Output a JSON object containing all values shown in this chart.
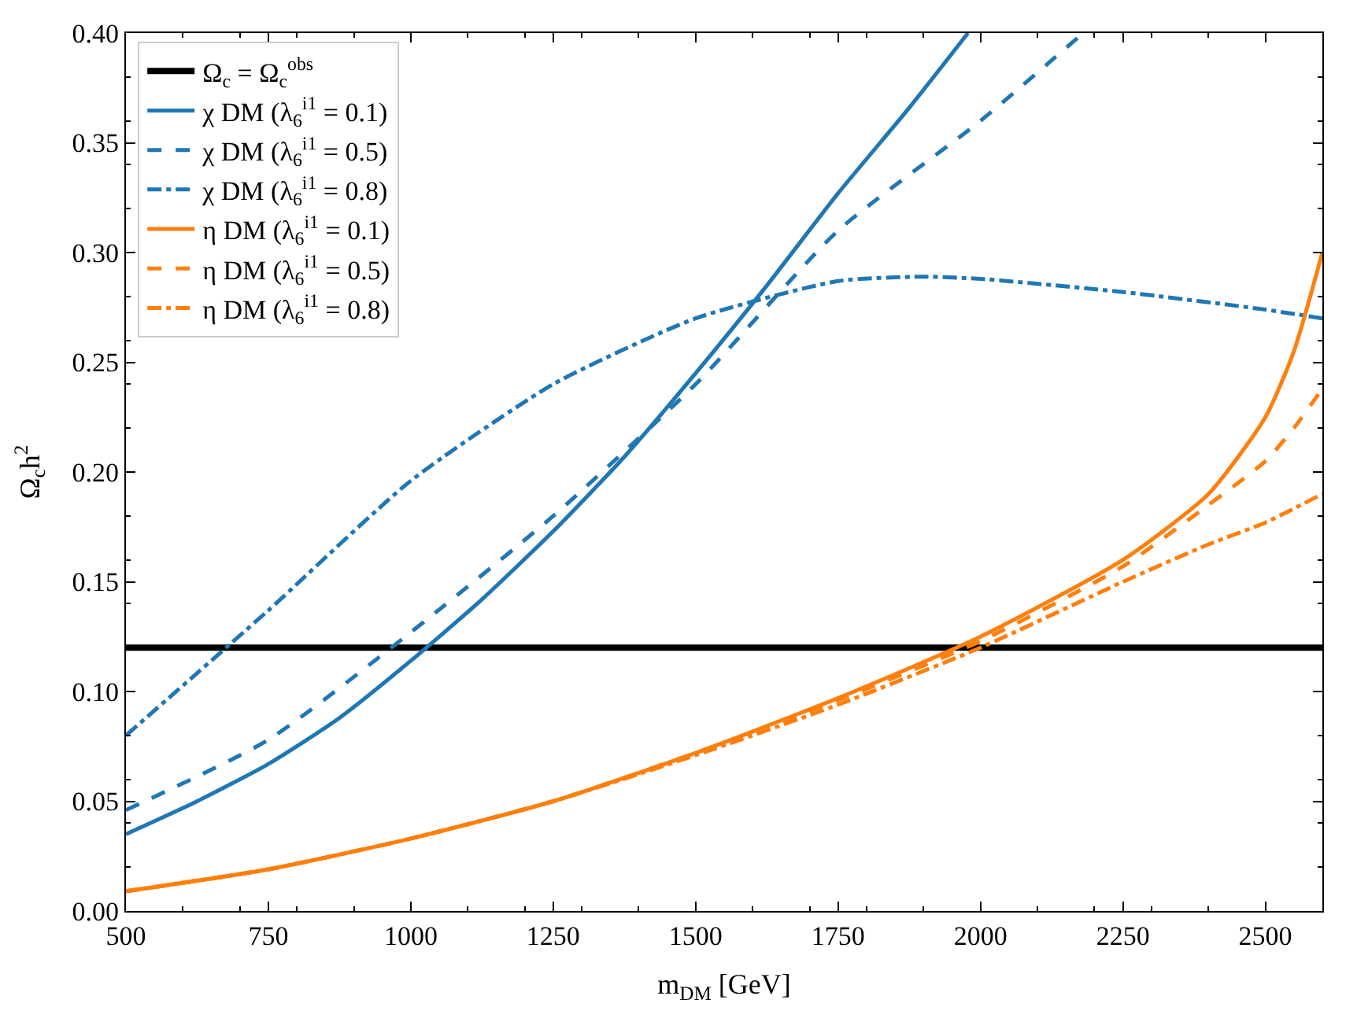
{
  "chart_data": {
    "type": "line",
    "xlabel": "m$_{DM}$ [GeV]",
    "ylabel": "Ω$_{c}$h$^{2}$",
    "xlim": [
      500,
      2600
    ],
    "xticks": [
      500,
      750,
      1000,
      1250,
      1500,
      1750,
      2000,
      2250,
      2500
    ],
    "ylim": [
      0,
      0.4
    ],
    "yticks": [
      {
        "value": 0,
        "label": "0.00"
      },
      0.05,
      {
        "value": 0.1,
        "label": "0.10"
      },
      0.15,
      {
        "value": 0.2,
        "label": "0.20"
      },
      0.25,
      {
        "value": 0.3,
        "label": "0.30"
      },
      0.35,
      {
        "value": 0.4,
        "label": "0.40"
      }
    ],
    "legend": "top left",
    "marker": "none",
    "ref_lines": [
      {
        "axis": "y",
        "value": 0.12,
        "label": "Ω$_{c}$ = Ω$_{c}$$^{obs}$",
        "color": "#000000",
        "line_style": "solid"
      }
    ],
    "series": [
      {
        "name": "χ DM (λ$_{6}$$^{i1}$ = 0.1)",
        "color": "#1f77b4",
        "line_style": "solid",
        "x": [
          500,
          625,
          750,
          875,
          1000,
          1125,
          1250,
          1375,
          1500,
          1625,
          1750,
          1875,
          1978
        ],
        "values": [
          0.035,
          0.05,
          0.067,
          0.088,
          0.114,
          0.142,
          0.173,
          0.207,
          0.245,
          0.285,
          0.327,
          0.366,
          0.4
        ]
      },
      {
        "name": "χ DM (λ$_{6}$$^{i1}$ = 0.5)",
        "color": "#1f77b4",
        "line_style": "dashed",
        "x": [
          500,
          750,
          1000,
          1250,
          1500,
          1750,
          2000,
          2180
        ],
        "values": [
          0.046,
          0.078,
          0.127,
          0.18,
          0.24,
          0.31,
          0.36,
          0.4
        ]
      },
      {
        "name": "χ DM (λ$_{6}$$^{i1}$ = 0.8)",
        "color": "#1f77b4",
        "line_style": "dashdot",
        "x": [
          500,
          750,
          1000,
          1250,
          1500,
          1750,
          1900,
          2000,
          2250,
          2500,
          2600
        ],
        "values": [
          0.08,
          0.137,
          0.196,
          0.24,
          0.27,
          0.287,
          0.289,
          0.288,
          0.282,
          0.274,
          0.27
        ]
      },
      {
        "name": "η DM (λ$_{6}$$^{i1}$ = 0.1)",
        "color": "#ff7f0e",
        "line_style": "solid",
        "x": [
          500,
          750,
          1000,
          1250,
          1500,
          1750,
          2000,
          2250,
          2400,
          2500,
          2550,
          2600
        ],
        "values": [
          0.009,
          0.019,
          0.033,
          0.05,
          0.072,
          0.097,
          0.125,
          0.16,
          0.19,
          0.225,
          0.255,
          0.3
        ]
      },
      {
        "name": "η DM (λ$_{6}$$^{i1}$ = 0.5)",
        "color": "#ff7f0e",
        "line_style": "dashed",
        "x": [
          500,
          750,
          1000,
          1250,
          1500,
          1750,
          2000,
          2250,
          2400,
          2500,
          2550,
          2600
        ],
        "values": [
          0.009,
          0.019,
          0.033,
          0.05,
          0.072,
          0.096,
          0.123,
          0.157,
          0.185,
          0.205,
          0.22,
          0.238
        ]
      },
      {
        "name": "η DM (λ$_{6}$$^{i1}$ = 0.8)",
        "color": "#ff7f0e",
        "line_style": "dashdot",
        "x": [
          500,
          750,
          1000,
          1250,
          1500,
          1750,
          2000,
          2250,
          2400,
          2500,
          2600
        ],
        "values": [
          0.009,
          0.019,
          0.033,
          0.05,
          0.071,
          0.094,
          0.12,
          0.15,
          0.167,
          0.177,
          0.19
        ]
      }
    ]
  }
}
